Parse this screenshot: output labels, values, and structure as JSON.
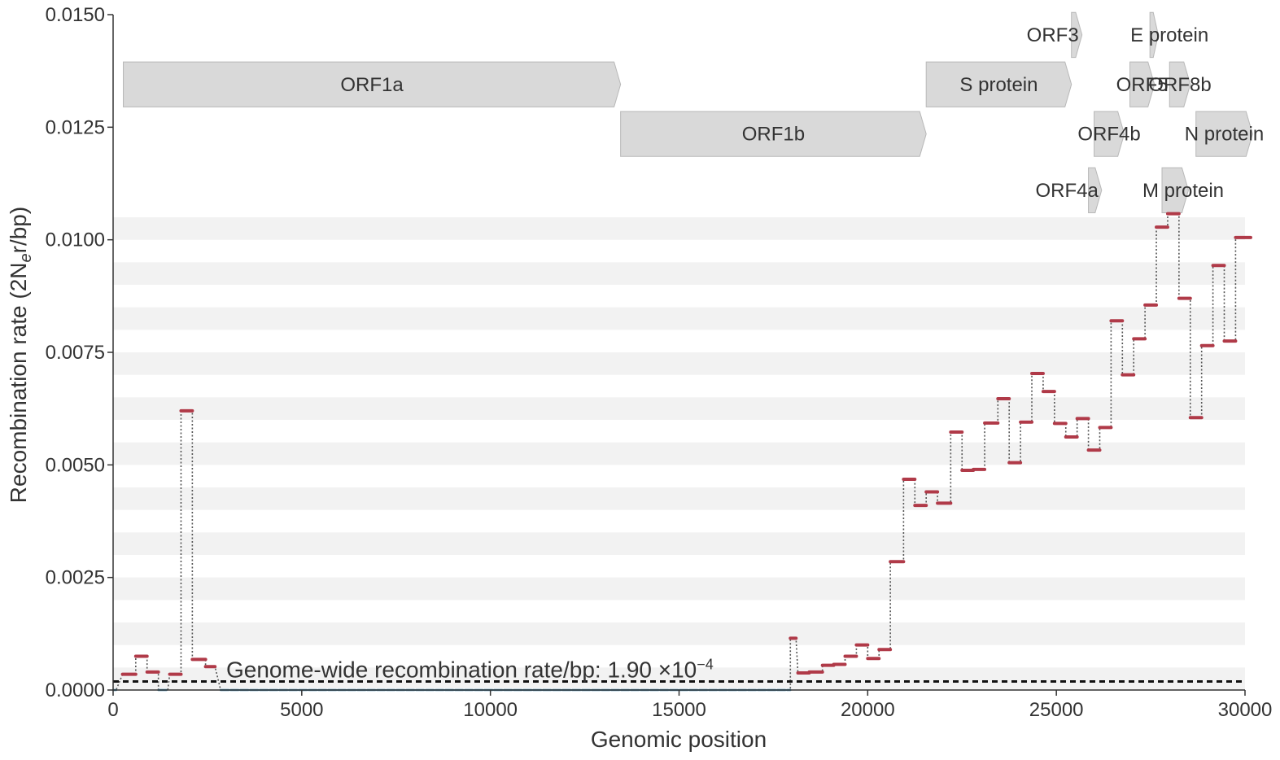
{
  "chart_data": {
    "type": "line",
    "xlabel": "Genomic position",
    "ylabel_parts": {
      "pre": "Recombination rate (2N",
      "sub": "e",
      "post": "r/bp)"
    },
    "xlim": [
      0,
      30000
    ],
    "ylim": [
      0,
      0.015
    ],
    "x_ticks": [
      "0",
      "5000",
      "10000",
      "15000",
      "20000",
      "25000",
      "30000"
    ],
    "x_tick_values": [
      0,
      5000,
      10000,
      15000,
      20000,
      25000,
      30000
    ],
    "y_ticks": [
      "0.0000",
      "0.0025",
      "0.0050",
      "0.0075",
      "0.0100",
      "0.0125",
      "0.0150"
    ],
    "y_tick_values": [
      0,
      0.0025,
      0.005,
      0.0075,
      0.01,
      0.0125,
      0.015
    ],
    "genome_wide": {
      "value": 0.00019,
      "label_text": "Genome-wide recombination rate/bp: 1.90 ×10",
      "label_exp": "−4"
    },
    "colors": {
      "significant": "#b03a48",
      "baseline": "#3a86b0",
      "connector": "#555555",
      "gene": "#d9d9d9",
      "gene_edge": "#b8b8b8",
      "band": "#f2f2f2"
    },
    "segments": [
      {
        "x0": 0,
        "x1": 80,
        "y": 0.0,
        "kind": "baseline"
      },
      {
        "x0": 250,
        "x1": 600,
        "y": 0.00035,
        "kind": "significant"
      },
      {
        "x0": 600,
        "x1": 900,
        "y": 0.00075,
        "kind": "significant"
      },
      {
        "x0": 900,
        "x1": 1200,
        "y": 0.0004,
        "kind": "significant"
      },
      {
        "x0": 1200,
        "x1": 1450,
        "y": 0.0,
        "kind": "baseline"
      },
      {
        "x0": 1500,
        "x1": 1800,
        "y": 0.00035,
        "kind": "significant"
      },
      {
        "x0": 1800,
        "x1": 2100,
        "y": 0.0062,
        "kind": "significant"
      },
      {
        "x0": 2100,
        "x1": 2450,
        "y": 0.00068,
        "kind": "significant"
      },
      {
        "x0": 2450,
        "x1": 2700,
        "y": 0.00052,
        "kind": "significant"
      },
      {
        "x0": 2850,
        "x1": 17950,
        "y": 0.0,
        "kind": "baseline"
      },
      {
        "x0": 17950,
        "x1": 18100,
        "y": 0.00115,
        "kind": "significant"
      },
      {
        "x0": 18150,
        "x1": 18450,
        "y": 0.00038,
        "kind": "significant"
      },
      {
        "x0": 18450,
        "x1": 18800,
        "y": 0.0004,
        "kind": "significant"
      },
      {
        "x0": 18800,
        "x1": 19100,
        "y": 0.00055,
        "kind": "significant"
      },
      {
        "x0": 19100,
        "x1": 19400,
        "y": 0.00057,
        "kind": "significant"
      },
      {
        "x0": 19400,
        "x1": 19700,
        "y": 0.00075,
        "kind": "significant"
      },
      {
        "x0": 19700,
        "x1": 20000,
        "y": 0.001,
        "kind": "significant"
      },
      {
        "x0": 20000,
        "x1": 20300,
        "y": 0.0007,
        "kind": "significant"
      },
      {
        "x0": 20300,
        "x1": 20600,
        "y": 0.0009,
        "kind": "significant"
      },
      {
        "x0": 20600,
        "x1": 20950,
        "y": 0.00285,
        "kind": "significant"
      },
      {
        "x0": 20950,
        "x1": 21250,
        "y": 0.00468,
        "kind": "significant"
      },
      {
        "x0": 21250,
        "x1": 21550,
        "y": 0.0041,
        "kind": "significant"
      },
      {
        "x0": 21550,
        "x1": 21850,
        "y": 0.0044,
        "kind": "significant"
      },
      {
        "x0": 21850,
        "x1": 22200,
        "y": 0.00415,
        "kind": "significant"
      },
      {
        "x0": 22200,
        "x1": 22500,
        "y": 0.00573,
        "kind": "significant"
      },
      {
        "x0": 22500,
        "x1": 22800,
        "y": 0.00488,
        "kind": "significant"
      },
      {
        "x0": 22800,
        "x1": 23100,
        "y": 0.0049,
        "kind": "significant"
      },
      {
        "x0": 23100,
        "x1": 23450,
        "y": 0.00593,
        "kind": "significant"
      },
      {
        "x0": 23450,
        "x1": 23750,
        "y": 0.00647,
        "kind": "significant"
      },
      {
        "x0": 23750,
        "x1": 24050,
        "y": 0.00505,
        "kind": "significant"
      },
      {
        "x0": 24050,
        "x1": 24350,
        "y": 0.00595,
        "kind": "significant"
      },
      {
        "x0": 24350,
        "x1": 24650,
        "y": 0.00703,
        "kind": "significant"
      },
      {
        "x0": 24650,
        "x1": 24950,
        "y": 0.00663,
        "kind": "significant"
      },
      {
        "x0": 24950,
        "x1": 25250,
        "y": 0.00592,
        "kind": "significant"
      },
      {
        "x0": 25250,
        "x1": 25550,
        "y": 0.00562,
        "kind": "significant"
      },
      {
        "x0": 25550,
        "x1": 25850,
        "y": 0.00603,
        "kind": "significant"
      },
      {
        "x0": 25850,
        "x1": 26150,
        "y": 0.00533,
        "kind": "significant"
      },
      {
        "x0": 26150,
        "x1": 26450,
        "y": 0.00583,
        "kind": "significant"
      },
      {
        "x0": 26450,
        "x1": 26750,
        "y": 0.0082,
        "kind": "significant"
      },
      {
        "x0": 26750,
        "x1": 27050,
        "y": 0.007,
        "kind": "significant"
      },
      {
        "x0": 27050,
        "x1": 27350,
        "y": 0.0078,
        "kind": "significant"
      },
      {
        "x0": 27350,
        "x1": 27650,
        "y": 0.00855,
        "kind": "significant"
      },
      {
        "x0": 27650,
        "x1": 27950,
        "y": 0.01028,
        "kind": "significant"
      },
      {
        "x0": 27950,
        "x1": 28250,
        "y": 0.01058,
        "kind": "significant"
      },
      {
        "x0": 28250,
        "x1": 28550,
        "y": 0.0087,
        "kind": "significant"
      },
      {
        "x0": 28550,
        "x1": 28850,
        "y": 0.00605,
        "kind": "significant"
      },
      {
        "x0": 28850,
        "x1": 29150,
        "y": 0.00765,
        "kind": "significant"
      },
      {
        "x0": 29150,
        "x1": 29450,
        "y": 0.00943,
        "kind": "significant"
      },
      {
        "x0": 29450,
        "x1": 29750,
        "y": 0.00775,
        "kind": "significant"
      },
      {
        "x0": 29750,
        "x1": 30150,
        "y": 0.01005,
        "kind": "significant"
      }
    ],
    "genes": [
      {
        "name": "ORF1a",
        "start": 270,
        "end": 13450,
        "row": 2
      },
      {
        "name": "ORF1b",
        "start": 13450,
        "end": 21550,
        "row": 1
      },
      {
        "name": "S protein",
        "start": 21550,
        "end": 25400,
        "row": 2
      },
      {
        "name": "ORF3",
        "start": 25400,
        "end": 25680,
        "row": 3,
        "label_side": "left"
      },
      {
        "name": "E protein",
        "start": 27480,
        "end": 27700,
        "row": 3,
        "label_side": "right"
      },
      {
        "name": "ORF5",
        "start": 26950,
        "end": 27600,
        "row": 2
      },
      {
        "name": "ORF8b",
        "start": 28000,
        "end": 28550,
        "row": 2
      },
      {
        "name": "ORF4b",
        "start": 26000,
        "end": 26800,
        "row": 1
      },
      {
        "name": "N protein",
        "start": 28700,
        "end": 30200,
        "row": 1
      },
      {
        "name": "ORF4a",
        "start": 25850,
        "end": 26200,
        "row": 0,
        "label_side": "left"
      },
      {
        "name": "M protein",
        "start": 27800,
        "end": 28500,
        "row": 0,
        "label_side": "right"
      }
    ]
  }
}
